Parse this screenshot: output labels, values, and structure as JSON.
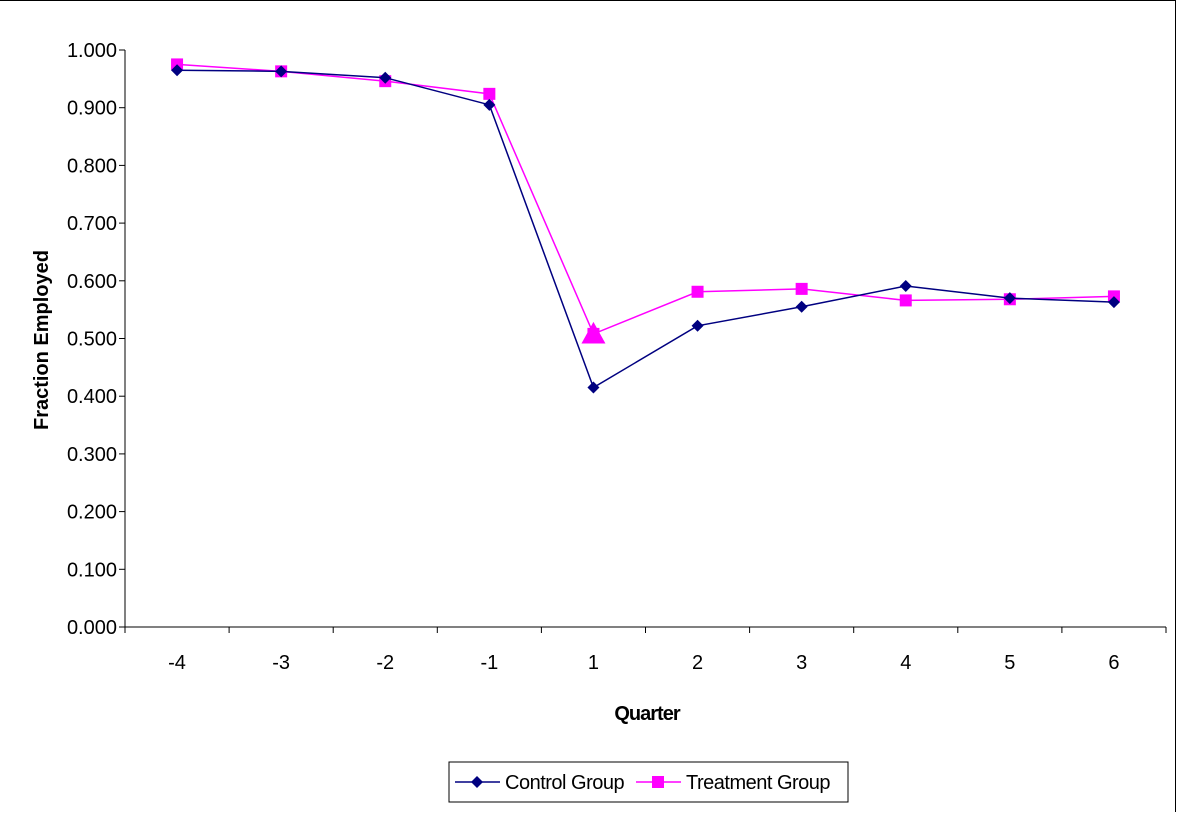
{
  "chart_data": {
    "type": "line",
    "xlabel": "Quarter",
    "ylabel": "Fraction Employed",
    "categories": [
      "-4",
      "-3",
      "-2",
      "-1",
      "1",
      "2",
      "3",
      "4",
      "5",
      "6"
    ],
    "ylim": [
      0,
      1
    ],
    "yticks": [
      "0.000",
      "0.100",
      "0.200",
      "0.300",
      "0.400",
      "0.500",
      "0.600",
      "0.700",
      "0.800",
      "0.900",
      "1.000"
    ],
    "grid": false,
    "legend_position": "bottom",
    "series": [
      {
        "name": "Control Group",
        "marker": "diamond",
        "color": "#000080",
        "values": [
          0.965,
          0.963,
          0.952,
          0.905,
          0.415,
          0.522,
          0.555,
          0.591,
          0.57,
          0.563
        ]
      },
      {
        "name": "Treatment Group",
        "marker": "square",
        "color": "#FF00FF",
        "values": [
          0.975,
          0.963,
          0.946,
          0.924,
          0.508,
          0.581,
          0.586,
          0.566,
          0.568,
          0.573
        ]
      }
    ],
    "annotations": [
      {
        "type": "triangle-marker",
        "series": "Treatment Group",
        "category": "1",
        "value": 0.508,
        "color": "#FF00FF"
      }
    ]
  }
}
